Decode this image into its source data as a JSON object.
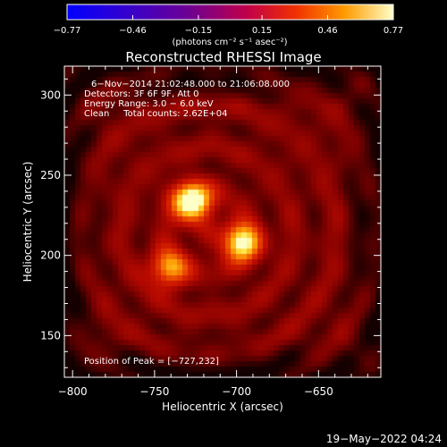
{
  "chart_data": {
    "type": "heatmap",
    "title": "Reconstructed RHESSI Image",
    "xlabel": "Heliocentric X (arcsec)",
    "ylabel": "Heliocentric Y (arcsec)",
    "xlim": [
      -805,
      -612
    ],
    "ylim": [
      124,
      318
    ],
    "x_ticks": [
      -800,
      -750,
      -700,
      -650
    ],
    "y_ticks": [
      150,
      200,
      250,
      300
    ],
    "x_tick_labels": [
      "−800",
      "−750",
      "−700",
      "−650"
    ],
    "y_tick_labels": [
      "150",
      "200",
      "250",
      "300"
    ],
    "colorbar": {
      "range": [
        -0.77,
        0.77
      ],
      "ticks": [
        -0.77,
        -0.46,
        -0.15,
        0.15,
        0.46,
        0.77
      ],
      "tick_labels": [
        "−0.77",
        "−0.46",
        "−0.15",
        "0.15",
        "0.46",
        "0.77"
      ],
      "unit_label": "(photons cm⁻² s⁻¹ asec⁻²)"
    },
    "annotations": [
      "6−Nov−2014 21:02:48.000 to 21:06:08.000",
      "Detectors: 3F 6F 9F, Att 0",
      "Energy Range: 3.0 − 6.0 keV",
      "Clean     Total counts: 2.62E+04"
    ],
    "peak_label": "Position of Peak = [−727,232]",
    "sources": [
      {
        "x": -727,
        "y": 233,
        "peak": 1.0
      },
      {
        "x": -697,
        "y": 208,
        "peak": 0.85
      },
      {
        "x": -741,
        "y": 192,
        "peak": 0.62
      }
    ],
    "background_level": 0.2
  },
  "footer_timestamp": "19−May−2022 04:24"
}
